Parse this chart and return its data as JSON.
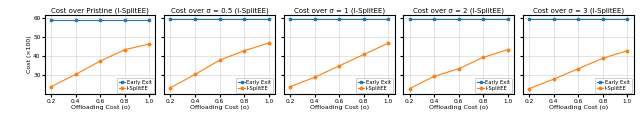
{
  "subplots": [
    {
      "title": "Cost over Pristine (I-SplitEE)",
      "early_exit_y": [
        59.0,
        59.0,
        59.0,
        59.0,
        59.0
      ],
      "isplitee_y": [
        24.0,
        30.5,
        37.5,
        43.5,
        46.5
      ]
    },
    {
      "title": "Cost over σ = 0.5 (I-SplitEE)",
      "early_exit_y": [
        59.5,
        59.5,
        59.5,
        59.5,
        59.5
      ],
      "isplitee_y": [
        23.5,
        30.5,
        38.0,
        43.0,
        47.0
      ]
    },
    {
      "title": "Cost over σ = 1 (I-SplitEE)",
      "early_exit_y": [
        59.5,
        59.5,
        59.5,
        59.5,
        59.5
      ],
      "isplitee_y": [
        24.0,
        29.0,
        35.0,
        41.0,
        47.0
      ]
    },
    {
      "title": "Cost over σ = 2 (I-SplitEE)",
      "early_exit_y": [
        59.5,
        59.5,
        59.5,
        59.5,
        59.5
      ],
      "isplitee_y": [
        23.0,
        29.5,
        33.5,
        39.5,
        43.5
      ]
    },
    {
      "title": "Cost over σ = 3 (I-SplitEE)",
      "early_exit_y": [
        59.5,
        59.5,
        59.5,
        59.5,
        59.5
      ],
      "isplitee_y": [
        23.0,
        28.0,
        33.5,
        39.0,
        43.0
      ]
    }
  ],
  "x": [
    0.2,
    0.4,
    0.6,
    0.8,
    1.0
  ],
  "xlabel": "Offloading Cost (o)",
  "ylabel": "Cost (×100)",
  "ylim": [
    20,
    62
  ],
  "yticks": [
    30,
    40,
    50,
    60
  ],
  "early_exit_color": "#1f77b4",
  "isplitee_color": "#ff7f0e",
  "early_exit_label": "Early Exit",
  "isplitee_label": "I-SplitEE",
  "background_color": "#ffffff",
  "grid_color": "#d0d0d0",
  "title_fontsize": 5.0,
  "label_fontsize": 4.5,
  "tick_fontsize": 4.2,
  "legend_fontsize": 3.8,
  "linewidth": 0.8,
  "markersize": 1.8
}
